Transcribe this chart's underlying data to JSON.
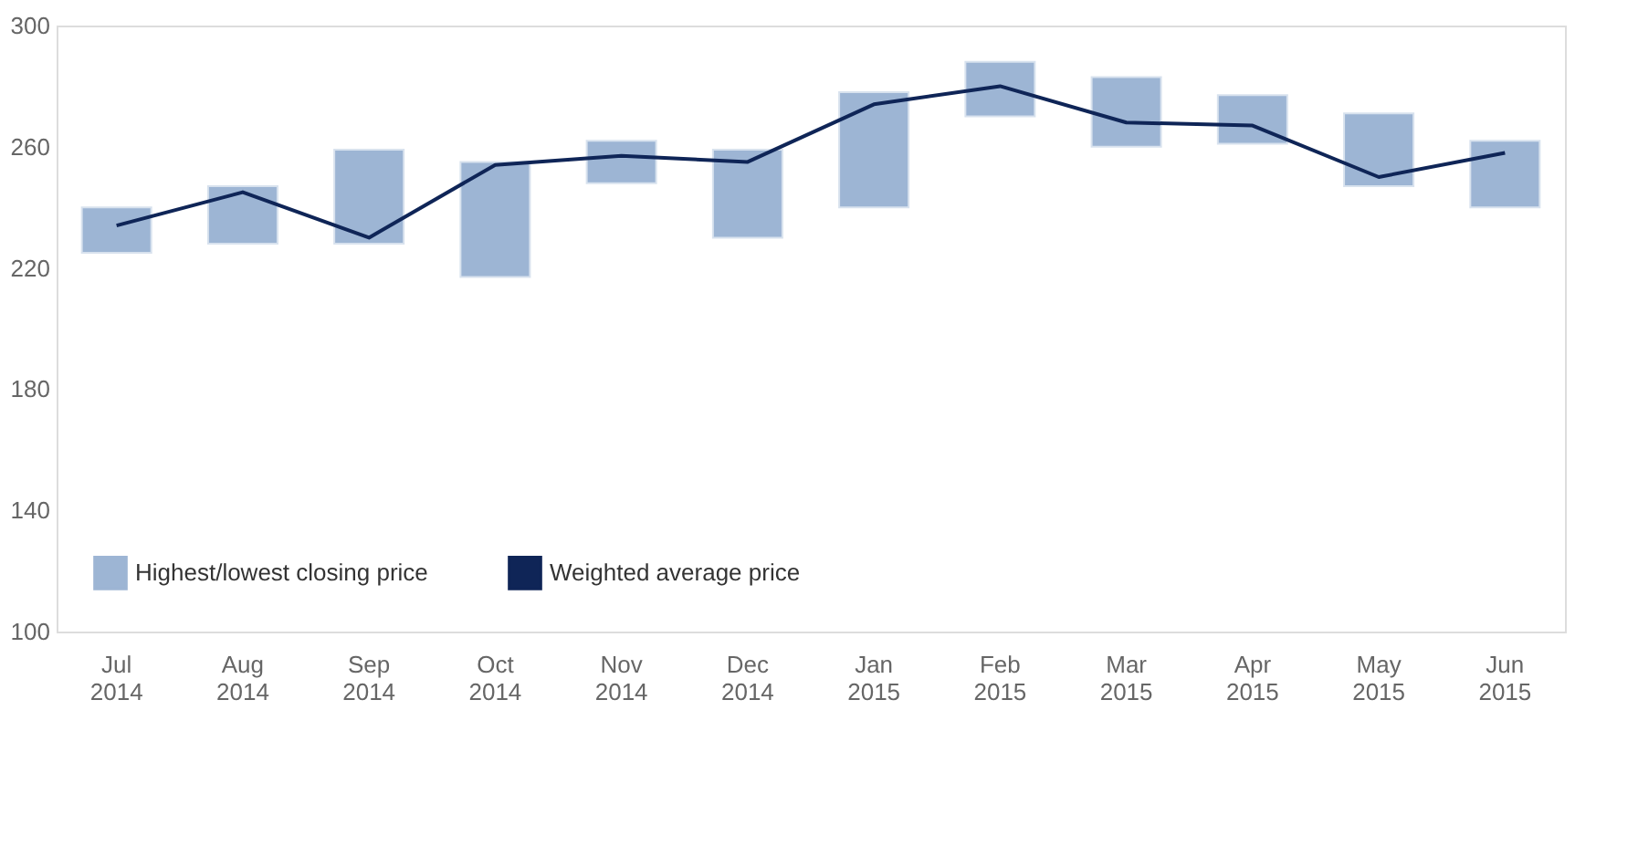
{
  "chart_data": {
    "type": "bar",
    "categories": [
      "Jul 2014",
      "Aug 2014",
      "Sep 2014",
      "Oct 2014",
      "Nov 2014",
      "Dec 2014",
      "Jan 2015",
      "Feb 2015",
      "Mar 2015",
      "Apr 2015",
      "May 2015",
      "Jun 2015"
    ],
    "series": [
      {
        "name": "Highest/lowest closing price",
        "color": "#9db5d4",
        "base": [
          225,
          228,
          228,
          217,
          248,
          230,
          240,
          270,
          260,
          261,
          247,
          240
        ],
        "values": [
          15,
          19,
          31,
          38,
          14,
          29,
          38,
          18,
          23,
          16,
          24,
          22
        ]
      },
      {
        "name": "Weighted average price",
        "type": "line",
        "color": "#0f2557",
        "values": [
          234,
          245,
          230,
          254,
          257,
          255,
          274,
          280,
          268,
          267,
          250,
          258
        ]
      }
    ],
    "ylim": [
      100,
      300
    ],
    "yticks": [
      100,
      140,
      180,
      220,
      260,
      300
    ],
    "grid": false,
    "legend": "bottom left",
    "marker": "none",
    "line_style": "solid"
  }
}
